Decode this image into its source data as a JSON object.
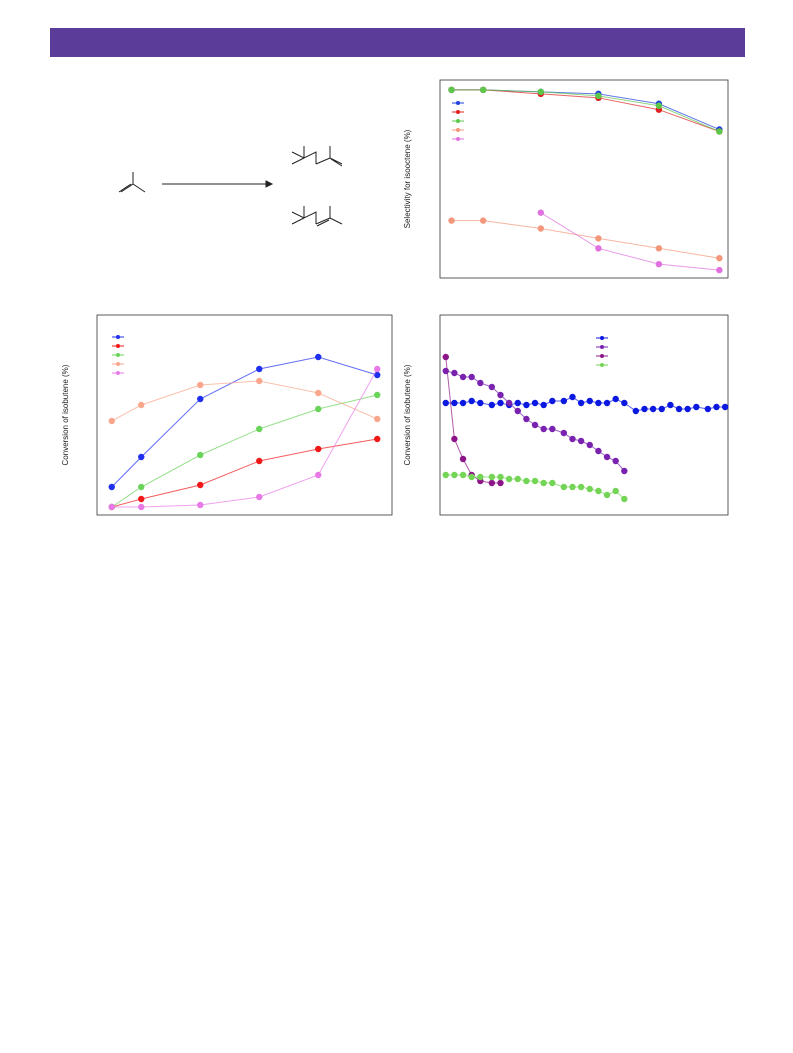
{
  "chart_data": [
    {
      "type": "line",
      "y_label": "Selectivity for isooctene (%)",
      "xlim": [
        0,
        100
      ],
      "ylim": [
        0,
        100
      ],
      "series": [
        {
          "color": "#1f3fe0",
          "x": [
            4,
            15,
            35,
            55,
            76,
            97
          ],
          "values": [
            95,
            95,
            94,
            93,
            88,
            75
          ]
        },
        {
          "color": "#e02020",
          "x": [
            4,
            15,
            35,
            55,
            76,
            97
          ],
          "values": [
            95,
            95,
            93,
            91,
            85,
            74
          ]
        },
        {
          "color": "#5cc84a",
          "x": [
            4,
            15,
            35,
            55,
            76,
            97
          ],
          "values": [
            95,
            95,
            94,
            92,
            87,
            74
          ]
        },
        {
          "color": "#f4967a",
          "x": [
            4,
            15,
            35,
            55,
            76,
            97
          ],
          "values": [
            29,
            29,
            25,
            20,
            15,
            10
          ]
        },
        {
          "color": "#e070e0",
          "x": [
            35,
            55,
            76,
            97
          ],
          "values": [
            33,
            15,
            7,
            4
          ]
        }
      ]
    },
    {
      "type": "line",
      "y_label": "Conversion of isobutene (%)",
      "xlim": [
        0,
        100
      ],
      "ylim": [
        0,
        100
      ],
      "series": [
        {
          "color": "#1f2ff0",
          "x": [
            5,
            15,
            35,
            55,
            75,
            95
          ],
          "values": [
            14,
            29,
            58,
            73,
            79,
            70
          ]
        },
        {
          "color": "#f01818",
          "x": [
            5,
            15,
            35,
            55,
            75,
            95
          ],
          "values": [
            4,
            8,
            15,
            27,
            33,
            38
          ]
        },
        {
          "color": "#6ad45a",
          "x": [
            5,
            15,
            35,
            55,
            75,
            95
          ],
          "values": [
            4,
            14,
            30,
            43,
            53,
            60
          ]
        },
        {
          "color": "#f9a68c",
          "x": [
            5,
            15,
            35,
            55,
            75,
            95
          ],
          "values": [
            47,
            55,
            65,
            67,
            61,
            48
          ]
        },
        {
          "color": "#e87ae8",
          "x": [
            5,
            15,
            35,
            55,
            75,
            95
          ],
          "values": [
            4,
            4,
            5,
            9,
            20,
            73
          ]
        }
      ]
    },
    {
      "type": "line",
      "y_label": "Conversion of isobutene (%)",
      "xlim": [
        0,
        100
      ],
      "ylim": [
        0,
        100
      ],
      "series": [
        {
          "color": "#0a18e0",
          "x": [
            2,
            5,
            8,
            11,
            14,
            18,
            21,
            24,
            27,
            30,
            33,
            36,
            39,
            43,
            46,
            49,
            52,
            55,
            58,
            61,
            64,
            68,
            71,
            74,
            77,
            80,
            83,
            86,
            89,
            93,
            96,
            99
          ],
          "values": [
            56,
            56,
            56,
            57,
            56,
            55,
            56,
            55,
            56,
            55,
            56,
            55,
            57,
            57,
            59,
            56,
            57,
            56,
            56,
            58,
            56,
            52,
            53,
            53,
            53,
            55,
            53,
            53,
            54,
            53,
            54,
            54
          ]
        },
        {
          "color": "#7a22b0",
          "x": [
            2,
            5,
            8,
            11,
            14,
            18,
            21,
            24,
            27,
            30,
            33,
            36,
            39,
            43,
            46,
            49,
            52,
            55,
            58,
            61,
            64
          ],
          "values": [
            72,
            71,
            69,
            69,
            66,
            64,
            60,
            56,
            52,
            48,
            45,
            43,
            43,
            41,
            38,
            37,
            35,
            32,
            29,
            27,
            22
          ]
        },
        {
          "color": "#8c1688",
          "x": [
            2,
            5,
            8,
            11,
            14,
            18,
            21
          ],
          "values": [
            79,
            38,
            28,
            20,
            17,
            16,
            16
          ]
        },
        {
          "color": "#74d455",
          "x": [
            2,
            5,
            8,
            11,
            14,
            18,
            21,
            24,
            27,
            30,
            33,
            36,
            39,
            43,
            46,
            49,
            52,
            55,
            58,
            61,
            64
          ],
          "values": [
            20,
            20,
            20,
            19,
            19,
            19,
            19,
            18,
            18,
            17,
            17,
            16,
            16,
            14,
            14,
            14,
            13,
            12,
            10,
            12,
            8
          ]
        }
      ]
    }
  ]
}
